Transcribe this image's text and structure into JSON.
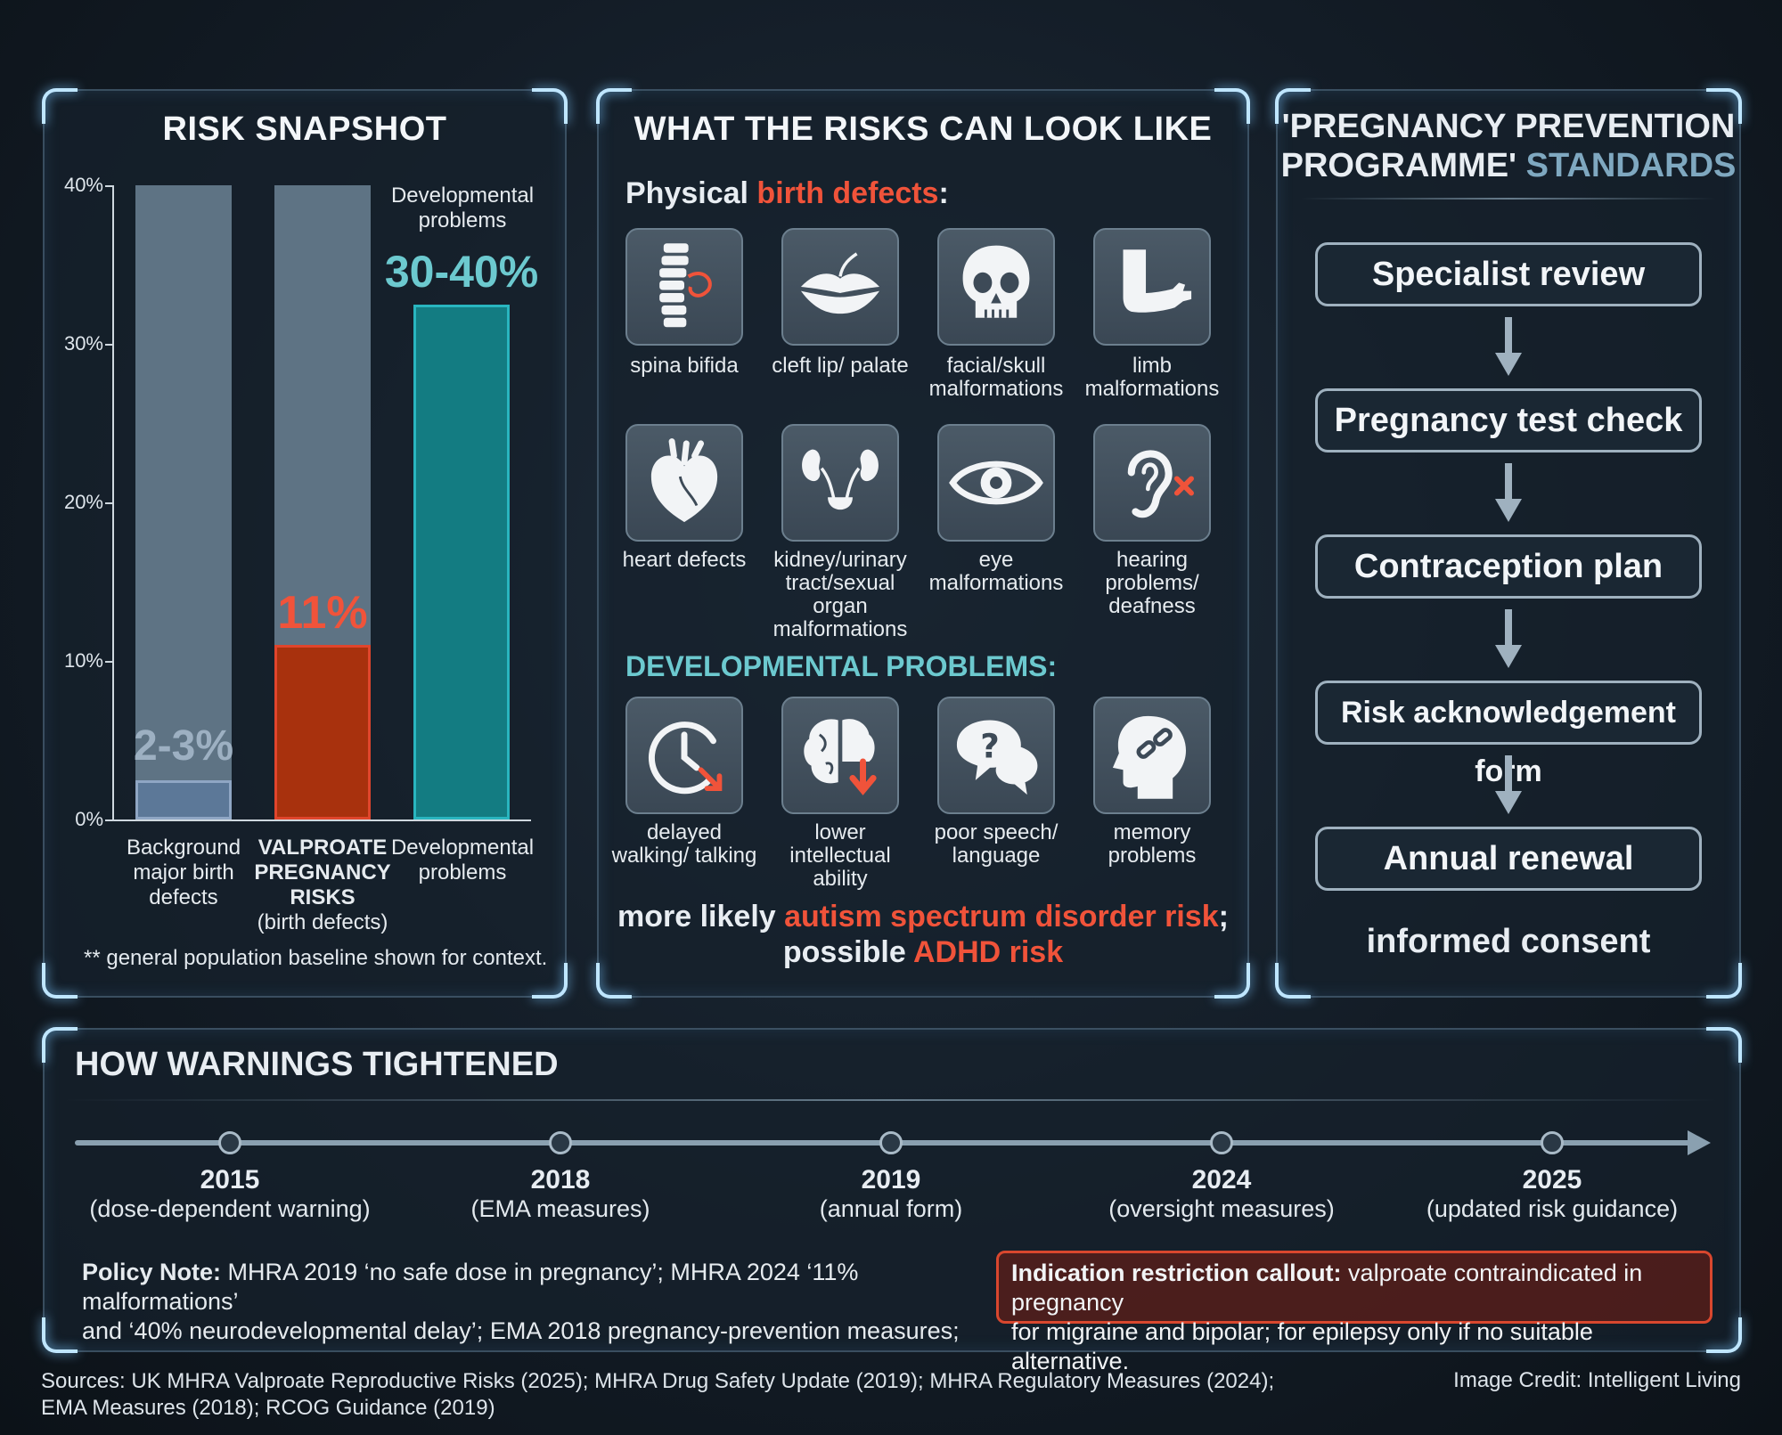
{
  "snapshot": {
    "title": "RISK SNAPSHOT",
    "y_ticks": [
      "40%",
      "30%",
      "20%",
      "10%",
      "0%"
    ],
    "dev_top_label": "Developmental problems",
    "bars": [
      {
        "value_label": "2-3%",
        "label_lines": [
          "Background",
          "major birth",
          "defects"
        ]
      },
      {
        "value_label": "11%",
        "label_lines": [
          "VALPROATE",
          "PREGNANCY",
          "RISKS"
        ],
        "sub": "(birth defects)"
      },
      {
        "value_label": "30-40%",
        "label_lines": [
          "Developmental",
          "problems"
        ]
      }
    ],
    "footnote": "** general population baseline shown for context.",
    "colors": {
      "baseline": "#5c7898",
      "valproate": "#a8310d",
      "developmental": "#137c82",
      "track": "#5e7384"
    }
  },
  "chart_data": {
    "type": "bar",
    "categories": [
      "Background major birth defects",
      "VALPROATE PREGNANCY RISKS (birth defects)",
      "Developmental problems"
    ],
    "values": [
      2.5,
      11,
      32.5
    ],
    "value_labels": [
      "2-3%",
      "11%",
      "30-40%"
    ],
    "ylim": [
      0,
      40
    ],
    "y_ticks": [
      0,
      10,
      20,
      30,
      40
    ],
    "track_max": [
      40,
      40,
      null
    ]
  },
  "risks": {
    "title": "WHAT THE RISKS CAN LOOK LIKE",
    "physical_prefix": "Physical ",
    "physical_highlight": "birth defects",
    "physical_suffix": ":",
    "physical_items": [
      {
        "icon": "spine-icon",
        "caption": "spina bifida"
      },
      {
        "icon": "lips-icon",
        "caption": "cleft lip/ palate"
      },
      {
        "icon": "skull-icon",
        "caption": "facial/skull malformations"
      },
      {
        "icon": "arm-icon",
        "caption": "limb malformations"
      },
      {
        "icon": "heart-icon",
        "caption": "heart defects"
      },
      {
        "icon": "kidney-icon",
        "caption": "kidney/urinary tract/sexual organ malformations"
      },
      {
        "icon": "eye-icon",
        "caption": "eye malformations"
      },
      {
        "icon": "ear-icon",
        "caption": "hearing problems/ deafness"
      }
    ],
    "dev_title": "DEVELOPMENTAL PROBLEMS:",
    "dev_items": [
      {
        "icon": "clock-icon",
        "caption": "delayed walking/ talking"
      },
      {
        "icon": "brain-icon",
        "caption": "lower intellectual ability"
      },
      {
        "icon": "speech-icon",
        "caption": "poor speech/ language"
      },
      {
        "icon": "memory-icon",
        "caption": "memory problems"
      }
    ],
    "autism_prefix": "more likely ",
    "autism_highlight": "autism spectrum disorder risk",
    "autism_suffix": ";",
    "adhd_prefix": "possible ",
    "adhd_highlight": "ADHD risk"
  },
  "ppp": {
    "title_line1": "'PREGNANCY PREVENTION",
    "title_line2a": "PROGRAMME'",
    "title_line2b": "STANDARDS",
    "steps": [
      "Specialist review",
      "Pregnancy test check",
      "Contraception plan",
      "Risk acknowledgement form",
      "Annual renewal"
    ],
    "footer": "informed consent"
  },
  "timeline": {
    "title": "HOW WARNINGS TIGHTENED",
    "events": [
      {
        "year": "2015",
        "desc": "(dose-dependent warning)"
      },
      {
        "year": "2018",
        "desc": "(EMA measures)"
      },
      {
        "year": "2019",
        "desc": "(annual form)"
      },
      {
        "year": "2024",
        "desc": "(oversight measures)"
      },
      {
        "year": "2025",
        "desc": "(updated risk guidance)"
      }
    ],
    "policy_label": "Policy Note:",
    "policy_line1": " MHRA 2019 ‘no safe dose in pregnancy’; MHRA 2024 ‘11% malformations’",
    "policy_line2": "and ‘40% neurodevelopmental delay’; EMA 2018 pregnancy-prevention measures;",
    "callout_label": "Indication restriction callout:",
    "callout_line1": " valproate contraindicated in pregnancy",
    "callout_line2": "for migraine and bipolar; for epilepsy only if no suitable alternative."
  },
  "footer": {
    "sources_line1": "Sources: UK MHRA Valproate Reproductive Risks (2025); MHRA Drug Safety Update (2019); MHRA Regulatory Measures (2024);",
    "sources_line2": "EMA Measures (2018); RCOG Guidance (2019)",
    "credit": "Image Credit: Intelligent Living"
  }
}
